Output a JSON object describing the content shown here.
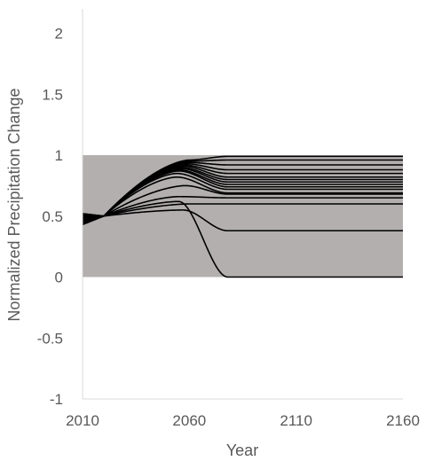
{
  "chart_data": {
    "type": "line",
    "xlabel": "Year",
    "ylabel": "Normalized Precipitation Change",
    "xlim": [
      2010,
      2160
    ],
    "ylim": [
      -1,
      2.2
    ],
    "xticks": [
      {
        "value": 2010,
        "label": "2010"
      },
      {
        "value": 2060,
        "label": "2060"
      },
      {
        "value": 2110,
        "label": "2110"
      },
      {
        "value": 2160,
        "label": "2160"
      }
    ],
    "yticks": [
      {
        "value": 2,
        "label": "2"
      },
      {
        "value": 1.5,
        "label": "1.5"
      },
      {
        "value": 1,
        "label": "1"
      },
      {
        "value": 0.5,
        "label": "0.5"
      },
      {
        "value": 0,
        "label": "0"
      },
      {
        "value": -0.5,
        "label": "-0.5"
      },
      {
        "value": -1,
        "label": "-1"
      }
    ],
    "grid": false,
    "shaded_band": {
      "x": [
        2010,
        2160
      ],
      "y": [
        0,
        1
      ],
      "color": "#b3afaf"
    },
    "line_color": "#000000",
    "series": [
      {
        "start": 0.43,
        "peak_year": 2060,
        "peak": 0.96,
        "final": 0.99
      },
      {
        "start": 0.44,
        "peak_year": 2060,
        "peak": 0.95,
        "final": 0.96
      },
      {
        "start": 0.45,
        "peak_year": 2059,
        "peak": 0.94,
        "final": 0.92
      },
      {
        "start": 0.46,
        "peak_year": 2058,
        "peak": 0.93,
        "final": 0.88
      },
      {
        "start": 0.47,
        "peak_year": 2057,
        "peak": 0.92,
        "final": 0.85
      },
      {
        "start": 0.47,
        "peak_year": 2057,
        "peak": 0.91,
        "final": 0.82
      },
      {
        "start": 0.48,
        "peak_year": 2056,
        "peak": 0.9,
        "final": 0.8
      },
      {
        "start": 0.48,
        "peak_year": 2056,
        "peak": 0.89,
        "final": 0.78
      },
      {
        "start": 0.49,
        "peak_year": 2055,
        "peak": 0.88,
        "final": 0.76
      },
      {
        "start": 0.49,
        "peak_year": 2055,
        "peak": 0.87,
        "final": 0.74
      },
      {
        "start": 0.5,
        "peak_year": 2054,
        "peak": 0.85,
        "final": 0.72
      },
      {
        "start": 0.5,
        "peak_year": 2054,
        "peak": 0.82,
        "final": 0.69
      },
      {
        "start": 0.5,
        "peak_year": 2058,
        "peak": 0.75,
        "final": 0.68
      },
      {
        "start": 0.51,
        "peak_year": 2055,
        "peak": 0.66,
        "final": 0.65
      },
      {
        "start": 0.51,
        "peak_year": 2060,
        "peak": 0.6,
        "final": 0.6
      },
      {
        "start": 0.52,
        "peak_year": 2057,
        "peak": 0.55,
        "final": 0.38
      },
      {
        "start": 0.52,
        "peak_year": 2055,
        "peak": 0.62,
        "final": 0.0
      }
    ]
  }
}
